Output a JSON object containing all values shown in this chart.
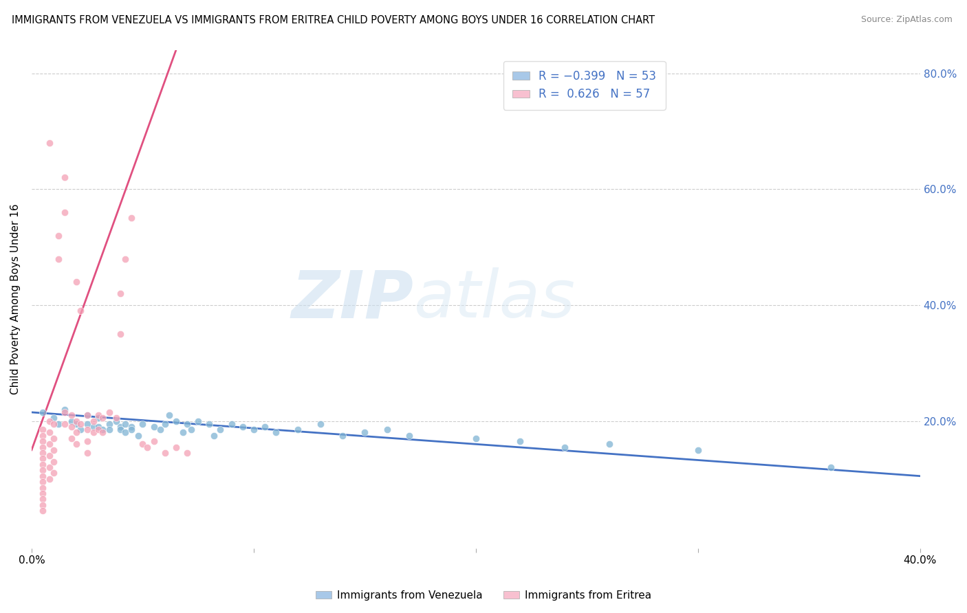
{
  "title": "IMMIGRANTS FROM VENEZUELA VS IMMIGRANTS FROM ERITREA CHILD POVERTY AMONG BOYS UNDER 16 CORRELATION CHART",
  "source": "Source: ZipAtlas.com",
  "ylabel": "Child Poverty Among Boys Under 16",
  "xlim": [
    0.0,
    0.4
  ],
  "ylim": [
    -0.02,
    0.84
  ],
  "ytick_vals": [
    0.2,
    0.4,
    0.6,
    0.8
  ],
  "ytick_labels": [
    "20.0%",
    "40.0%",
    "60.0%",
    "80.0%"
  ],
  "watermark_zip": "ZIP",
  "watermark_atlas": "atlas",
  "color_venezuela": "#7fb3d3",
  "color_eritrea": "#f4a0b5",
  "color_line_venezuela": "#4472c4",
  "color_line_eritrea": "#e05080",
  "legend_color_ven": "#a8c8e8",
  "legend_color_eri": "#f8c0d0",
  "venezuela_scatter": [
    [
      0.005,
      0.215
    ],
    [
      0.01,
      0.205
    ],
    [
      0.012,
      0.195
    ],
    [
      0.015,
      0.22
    ],
    [
      0.018,
      0.2
    ],
    [
      0.02,
      0.195
    ],
    [
      0.022,
      0.185
    ],
    [
      0.025,
      0.21
    ],
    [
      0.025,
      0.195
    ],
    [
      0.028,
      0.19
    ],
    [
      0.03,
      0.205
    ],
    [
      0.03,
      0.19
    ],
    [
      0.032,
      0.185
    ],
    [
      0.035,
      0.195
    ],
    [
      0.035,
      0.185
    ],
    [
      0.038,
      0.2
    ],
    [
      0.04,
      0.19
    ],
    [
      0.04,
      0.185
    ],
    [
      0.042,
      0.195
    ],
    [
      0.042,
      0.18
    ],
    [
      0.045,
      0.19
    ],
    [
      0.045,
      0.185
    ],
    [
      0.048,
      0.175
    ],
    [
      0.05,
      0.195
    ],
    [
      0.055,
      0.19
    ],
    [
      0.058,
      0.185
    ],
    [
      0.06,
      0.195
    ],
    [
      0.062,
      0.21
    ],
    [
      0.065,
      0.2
    ],
    [
      0.068,
      0.18
    ],
    [
      0.07,
      0.195
    ],
    [
      0.072,
      0.185
    ],
    [
      0.075,
      0.2
    ],
    [
      0.08,
      0.195
    ],
    [
      0.082,
      0.175
    ],
    [
      0.085,
      0.185
    ],
    [
      0.09,
      0.195
    ],
    [
      0.095,
      0.19
    ],
    [
      0.1,
      0.185
    ],
    [
      0.105,
      0.19
    ],
    [
      0.11,
      0.18
    ],
    [
      0.12,
      0.185
    ],
    [
      0.13,
      0.195
    ],
    [
      0.14,
      0.175
    ],
    [
      0.15,
      0.18
    ],
    [
      0.16,
      0.185
    ],
    [
      0.17,
      0.175
    ],
    [
      0.2,
      0.17
    ],
    [
      0.22,
      0.165
    ],
    [
      0.24,
      0.155
    ],
    [
      0.26,
      0.16
    ],
    [
      0.3,
      0.15
    ],
    [
      0.36,
      0.12
    ]
  ],
  "eritrea_scatter": [
    [
      0.005,
      0.185
    ],
    [
      0.005,
      0.175
    ],
    [
      0.005,
      0.165
    ],
    [
      0.005,
      0.155
    ],
    [
      0.005,
      0.145
    ],
    [
      0.005,
      0.135
    ],
    [
      0.005,
      0.125
    ],
    [
      0.005,
      0.115
    ],
    [
      0.005,
      0.105
    ],
    [
      0.005,
      0.095
    ],
    [
      0.005,
      0.085
    ],
    [
      0.005,
      0.075
    ],
    [
      0.005,
      0.065
    ],
    [
      0.005,
      0.055
    ],
    [
      0.005,
      0.045
    ],
    [
      0.008,
      0.2
    ],
    [
      0.008,
      0.18
    ],
    [
      0.008,
      0.16
    ],
    [
      0.008,
      0.14
    ],
    [
      0.008,
      0.12
    ],
    [
      0.008,
      0.1
    ],
    [
      0.01,
      0.195
    ],
    [
      0.01,
      0.17
    ],
    [
      0.01,
      0.15
    ],
    [
      0.01,
      0.13
    ],
    [
      0.01,
      0.11
    ],
    [
      0.015,
      0.215
    ],
    [
      0.015,
      0.195
    ],
    [
      0.018,
      0.21
    ],
    [
      0.018,
      0.19
    ],
    [
      0.018,
      0.17
    ],
    [
      0.02,
      0.2
    ],
    [
      0.02,
      0.18
    ],
    [
      0.02,
      0.16
    ],
    [
      0.022,
      0.195
    ],
    [
      0.025,
      0.21
    ],
    [
      0.025,
      0.185
    ],
    [
      0.025,
      0.165
    ],
    [
      0.025,
      0.145
    ],
    [
      0.028,
      0.2
    ],
    [
      0.028,
      0.18
    ],
    [
      0.03,
      0.21
    ],
    [
      0.03,
      0.185
    ],
    [
      0.032,
      0.205
    ],
    [
      0.032,
      0.18
    ],
    [
      0.035,
      0.215
    ],
    [
      0.038,
      0.205
    ],
    [
      0.04,
      0.35
    ],
    [
      0.04,
      0.42
    ],
    [
      0.042,
      0.48
    ],
    [
      0.045,
      0.55
    ],
    [
      0.015,
      0.56
    ],
    [
      0.015,
      0.62
    ],
    [
      0.012,
      0.48
    ],
    [
      0.012,
      0.52
    ],
    [
      0.02,
      0.44
    ],
    [
      0.022,
      0.39
    ],
    [
      0.008,
      0.68
    ],
    [
      0.05,
      0.16
    ],
    [
      0.052,
      0.155
    ],
    [
      0.055,
      0.165
    ],
    [
      0.06,
      0.145
    ],
    [
      0.065,
      0.155
    ],
    [
      0.07,
      0.145
    ]
  ],
  "ven_line_x0": 0.0,
  "ven_line_x1": 0.4,
  "ven_line_y0": 0.215,
  "ven_line_y1": 0.105,
  "eri_line_x0": 0.0,
  "eri_line_x1": 0.065,
  "eri_line_y0": 0.15,
  "eri_line_y1": 0.84
}
